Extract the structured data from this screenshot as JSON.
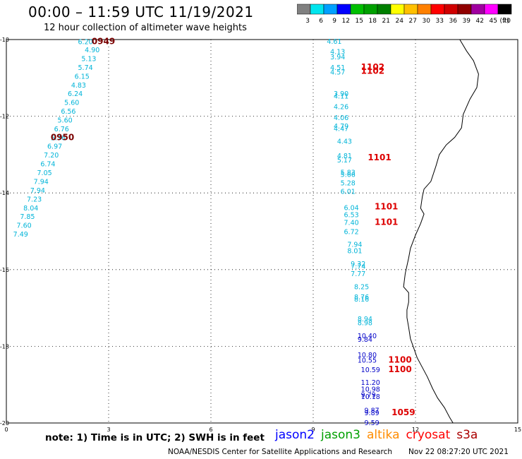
{
  "header": {
    "title": "00:00 – 11:59 UTC 11/19/2021",
    "subtitle": "12 hour collection of altimeter wave heights"
  },
  "colorbar": {
    "swatches": [
      {
        "label": "3",
        "color": "#808080"
      },
      {
        "label": "6",
        "color": "#00e5ee"
      },
      {
        "label": "9",
        "color": "#00a0ff"
      },
      {
        "label": "12",
        "color": "#0000ff"
      },
      {
        "label": "15",
        "color": "#00bf00"
      },
      {
        "label": "18",
        "color": "#00a000"
      },
      {
        "label": "21",
        "color": "#007f00"
      },
      {
        "label": "24",
        "color": "#ffff00"
      },
      {
        "label": "27",
        "color": "#ffc000"
      },
      {
        "label": "30",
        "color": "#ff8000"
      },
      {
        "label": "33",
        "color": "#ff0000"
      },
      {
        "label": "36",
        "color": "#d00000"
      },
      {
        "label": "39",
        "color": "#900000"
      },
      {
        "label": "42",
        "color": "#a000a0"
      },
      {
        "label": "45",
        "color": "#ff00ff"
      },
      {
        "label": "70",
        "color": "#000000"
      }
    ],
    "unit": "(ft)"
  },
  "axes": {
    "x_ticks": [
      "0",
      "3",
      "6",
      "9",
      "12",
      "15"
    ],
    "y_ticks": [
      "-10",
      "-12",
      "-14",
      "-16",
      "-18",
      "-20"
    ],
    "xlim": [
      0,
      15
    ],
    "ylim": [
      -20,
      -10
    ]
  },
  "colors": {
    "teal": "#00b4d8",
    "navy": "#0000c8",
    "red": "#dd0000",
    "maroon": "#7a0000"
  },
  "observations": [
    {
      "lon": 2.1,
      "lat": -10.05,
      "text": "6.20",
      "c": "teal"
    },
    {
      "lon": 2.3,
      "lat": -10.26,
      "text": "4.90",
      "c": "teal"
    },
    {
      "lon": 2.2,
      "lat": -10.49,
      "text": "5.13",
      "c": "teal"
    },
    {
      "lon": 2.1,
      "lat": -10.72,
      "text": "5.74",
      "c": "teal"
    },
    {
      "lon": 2.0,
      "lat": -10.95,
      "text": "6.15",
      "c": "teal"
    },
    {
      "lon": 1.9,
      "lat": -11.18,
      "text": "4.83",
      "c": "teal"
    },
    {
      "lon": 1.8,
      "lat": -11.4,
      "text": "6.24",
      "c": "teal"
    },
    {
      "lon": 1.7,
      "lat": -11.63,
      "text": "5.60",
      "c": "teal"
    },
    {
      "lon": 1.6,
      "lat": -11.86,
      "text": "6.56",
      "c": "teal"
    },
    {
      "lon": 1.5,
      "lat": -12.09,
      "text": "5.60",
      "c": "teal"
    },
    {
      "lon": 1.4,
      "lat": -12.32,
      "text": "6.76",
      "c": "teal"
    },
    {
      "lon": 1.3,
      "lat": -12.55,
      "text": "5.76",
      "c": "teal"
    },
    {
      "lon": 1.2,
      "lat": -12.77,
      "text": "6.97",
      "c": "teal"
    },
    {
      "lon": 1.1,
      "lat": -13.0,
      "text": "7.20",
      "c": "teal"
    },
    {
      "lon": 1.0,
      "lat": -13.23,
      "text": "6.74",
      "c": "teal"
    },
    {
      "lon": 0.9,
      "lat": -13.46,
      "text": "7.05",
      "c": "teal"
    },
    {
      "lon": 0.8,
      "lat": -13.69,
      "text": "7.94",
      "c": "teal"
    },
    {
      "lon": 0.7,
      "lat": -13.92,
      "text": "7.94",
      "c": "teal"
    },
    {
      "lon": 0.6,
      "lat": -14.15,
      "text": "7.23",
      "c": "teal"
    },
    {
      "lon": 0.5,
      "lat": -14.38,
      "text": "8.04",
      "c": "teal"
    },
    {
      "lon": 0.4,
      "lat": -14.6,
      "text": "7.85",
      "c": "teal"
    },
    {
      "lon": 0.3,
      "lat": -14.83,
      "text": "7.60",
      "c": "teal"
    },
    {
      "lon": 0.2,
      "lat": -15.06,
      "text": "7.49",
      "c": "teal"
    },
    {
      "lon": 2.5,
      "lat": -10.05,
      "text": "0949",
      "c": "maroon",
      "bold": true
    },
    {
      "lon": 1.3,
      "lat": -12.55,
      "text": "0950",
      "c": "maroon",
      "bold": true
    },
    {
      "lon": 9.4,
      "lat": -10.04,
      "text": "4.61",
      "c": "teal"
    },
    {
      "lon": 9.5,
      "lat": -10.3,
      "text": "4.13",
      "c": "teal"
    },
    {
      "lon": 9.5,
      "lat": -10.44,
      "text": "3.94",
      "c": "teal"
    },
    {
      "lon": 9.5,
      "lat": -10.72,
      "text": "4.51",
      "c": "teal"
    },
    {
      "lon": 9.5,
      "lat": -10.84,
      "text": "4.57",
      "c": "teal"
    },
    {
      "lon": 9.6,
      "lat": -11.4,
      "text": "3.90",
      "c": "teal"
    },
    {
      "lon": 9.6,
      "lat": -11.46,
      "text": "4.11",
      "c": "teal"
    },
    {
      "lon": 9.6,
      "lat": -11.74,
      "text": "4.26",
      "c": "teal"
    },
    {
      "lon": 9.6,
      "lat": -12.03,
      "text": "4.06",
      "c": "teal"
    },
    {
      "lon": 9.6,
      "lat": -12.25,
      "text": "4.79",
      "c": "teal"
    },
    {
      "lon": 9.6,
      "lat": -12.31,
      "text": "4.47",
      "c": "teal"
    },
    {
      "lon": 9.7,
      "lat": -12.64,
      "text": "4.43",
      "c": "teal"
    },
    {
      "lon": 9.7,
      "lat": -13.02,
      "text": "4.81",
      "c": "teal"
    },
    {
      "lon": 9.7,
      "lat": -13.13,
      "text": "5.17",
      "c": "teal"
    },
    {
      "lon": 9.8,
      "lat": -13.45,
      "text": "5.83",
      "c": "teal"
    },
    {
      "lon": 9.8,
      "lat": -13.51,
      "text": "5.66",
      "c": "teal"
    },
    {
      "lon": 9.8,
      "lat": -13.73,
      "text": "5.28",
      "c": "teal"
    },
    {
      "lon": 9.8,
      "lat": -13.95,
      "text": "6.01",
      "c": "teal"
    },
    {
      "lon": 9.9,
      "lat": -14.37,
      "text": "6.04",
      "c": "teal"
    },
    {
      "lon": 9.9,
      "lat": -14.56,
      "text": "6.53",
      "c": "teal"
    },
    {
      "lon": 9.9,
      "lat": -14.76,
      "text": "7.40",
      "c": "teal"
    },
    {
      "lon": 9.9,
      "lat": -15.0,
      "text": "6.72",
      "c": "teal"
    },
    {
      "lon": 10.0,
      "lat": -15.33,
      "text": "7.94",
      "c": "teal"
    },
    {
      "lon": 10.0,
      "lat": -15.5,
      "text": "8.01",
      "c": "teal"
    },
    {
      "lon": 10.1,
      "lat": -15.84,
      "text": "9.32",
      "c": "teal"
    },
    {
      "lon": 10.1,
      "lat": -15.9,
      "text": "7.74",
      "c": "teal"
    },
    {
      "lon": 10.1,
      "lat": -16.1,
      "text": "7.77",
      "c": "teal"
    },
    {
      "lon": 10.2,
      "lat": -16.44,
      "text": "8.25",
      "c": "teal"
    },
    {
      "lon": 10.2,
      "lat": -16.7,
      "text": "8.76",
      "c": "teal"
    },
    {
      "lon": 10.2,
      "lat": -16.76,
      "text": "8.16",
      "c": "teal"
    },
    {
      "lon": 10.3,
      "lat": -17.27,
      "text": "8.94",
      "c": "teal"
    },
    {
      "lon": 10.3,
      "lat": -17.38,
      "text": "8.98",
      "c": "teal"
    },
    {
      "lon": 10.3,
      "lat": -17.72,
      "text": "10.40",
      "c": "navy"
    },
    {
      "lon": 10.3,
      "lat": -17.81,
      "text": "9.84",
      "c": "navy"
    },
    {
      "lon": 10.3,
      "lat": -18.21,
      "text": "10.80",
      "c": "navy"
    },
    {
      "lon": 10.3,
      "lat": -18.35,
      "text": "10.55",
      "c": "navy"
    },
    {
      "lon": 10.4,
      "lat": -18.6,
      "text": "10.59",
      "c": "navy"
    },
    {
      "lon": 10.4,
      "lat": -18.93,
      "text": "11.20",
      "c": "navy"
    },
    {
      "lon": 10.4,
      "lat": -19.11,
      "text": "10.98",
      "c": "navy"
    },
    {
      "lon": 10.4,
      "lat": -19.25,
      "text": "9.79",
      "c": "navy"
    },
    {
      "lon": 10.4,
      "lat": -19.3,
      "text": "10.18",
      "c": "navy"
    },
    {
      "lon": 10.5,
      "lat": -19.66,
      "text": "9.87",
      "c": "navy"
    },
    {
      "lon": 10.5,
      "lat": -19.72,
      "text": "9.89",
      "c": "navy"
    },
    {
      "lon": 10.5,
      "lat": -19.98,
      "text": "9.59",
      "c": "navy"
    },
    {
      "lon": 10.4,
      "lat": -10.72,
      "text": "1102",
      "c": "red",
      "bold": true
    },
    {
      "lon": 10.4,
      "lat": -10.82,
      "text": "1102",
      "c": "red",
      "bold": true
    },
    {
      "lon": 10.6,
      "lat": -13.08,
      "text": "1101",
      "c": "red",
      "bold": true
    },
    {
      "lon": 10.8,
      "lat": -14.36,
      "text": "1101",
      "c": "red",
      "bold": true
    },
    {
      "lon": 10.8,
      "lat": -14.76,
      "text": "1101",
      "c": "red",
      "bold": true
    },
    {
      "lon": 11.2,
      "lat": -18.35,
      "text": "1100",
      "c": "red",
      "bold": true
    },
    {
      "lon": 11.2,
      "lat": -18.6,
      "text": "1100",
      "c": "red",
      "bold": true
    },
    {
      "lon": 11.3,
      "lat": -19.72,
      "text": "1059",
      "c": "red",
      "bold": true
    }
  ],
  "coastline": [
    [
      13.3,
      -10.0
    ],
    [
      13.5,
      -10.3
    ],
    [
      13.7,
      -10.55
    ],
    [
      13.85,
      -10.9
    ],
    [
      13.8,
      -11.25
    ],
    [
      13.6,
      -11.55
    ],
    [
      13.4,
      -11.95
    ],
    [
      13.35,
      -12.3
    ],
    [
      13.15,
      -12.55
    ],
    [
      12.9,
      -12.75
    ],
    [
      12.7,
      -13.0
    ],
    [
      12.6,
      -13.3
    ],
    [
      12.45,
      -13.7
    ],
    [
      12.25,
      -13.9
    ],
    [
      12.2,
      -14.1
    ],
    [
      12.15,
      -14.4
    ],
    [
      12.25,
      -14.55
    ],
    [
      12.15,
      -14.8
    ],
    [
      12.0,
      -15.1
    ],
    [
      11.85,
      -15.45
    ],
    [
      11.8,
      -15.7
    ],
    [
      11.75,
      -15.9
    ],
    [
      11.7,
      -16.1
    ],
    [
      11.65,
      -16.45
    ],
    [
      11.8,
      -16.6
    ],
    [
      11.8,
      -16.85
    ],
    [
      11.75,
      -17.05
    ],
    [
      11.75,
      -17.25
    ],
    [
      11.8,
      -17.5
    ],
    [
      11.85,
      -17.8
    ],
    [
      11.95,
      -18.05
    ],
    [
      12.05,
      -18.3
    ],
    [
      12.2,
      -18.55
    ],
    [
      12.35,
      -18.8
    ],
    [
      12.5,
      -19.1
    ],
    [
      12.65,
      -19.35
    ],
    [
      12.85,
      -19.6
    ],
    [
      13.0,
      -19.85
    ],
    [
      13.1,
      -20.0
    ]
  ],
  "note": "note: 1) Time is in UTC; 2) SWH is in feet",
  "legend": [
    {
      "label": "jason2",
      "color": "#0000ff"
    },
    {
      "label": "jason3",
      "color": "#00a000"
    },
    {
      "label": "altika",
      "color": "#ff8c00"
    },
    {
      "label": "cryosat",
      "color": "#ff0000"
    },
    {
      "label": "s3a",
      "color": "#aa0000"
    }
  ],
  "footer": {
    "credit": "NOAA/NESDIS Center for Satellite Applications and Research",
    "timestamp": "Nov 22 08:27:20 UTC 2021"
  }
}
